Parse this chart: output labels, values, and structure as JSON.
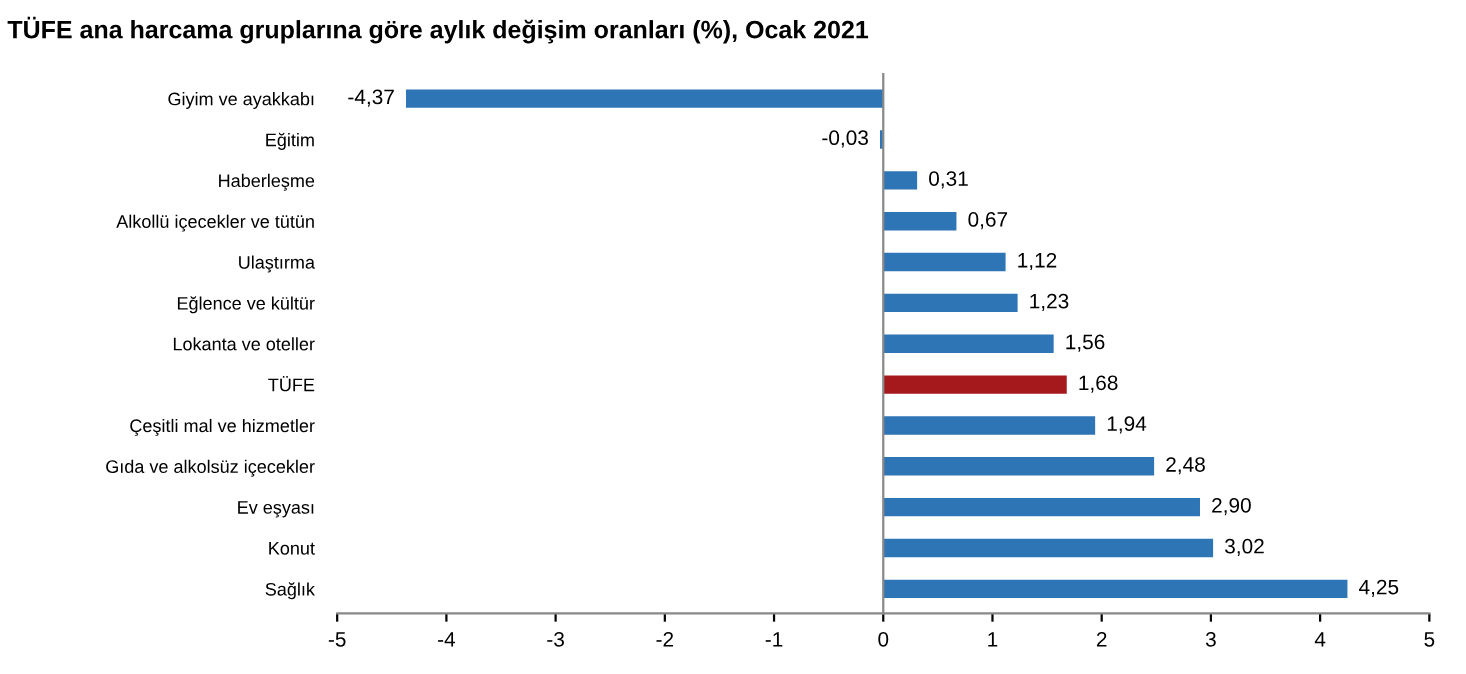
{
  "chart_data": {
    "type": "bar",
    "orientation": "horizontal",
    "title": "TÜFE ana harcama gruplarına göre aylık değişim oranları (%), Ocak 2021",
    "categories": [
      "Giyim ve ayakkabı",
      "Eğitim",
      "Haberleşme",
      "Alkollü içecekler ve tütün",
      "Ulaştırma",
      "Eğlence ve kültür",
      "Lokanta ve oteller",
      "TÜFE",
      "Çeşitli mal ve hizmetler",
      "Gıda ve alkolsüz içecekler",
      "Ev eşyası",
      "Konut",
      "Sağlık"
    ],
    "values": [
      -4.37,
      -0.03,
      0.31,
      0.67,
      1.12,
      1.23,
      1.56,
      1.68,
      1.94,
      2.48,
      2.9,
      3.02,
      4.25
    ],
    "value_labels": [
      "-4,37",
      "-0,03",
      "0,31",
      "0,67",
      "1,12",
      "1,23",
      "1,56",
      "1,68",
      "1,94",
      "2,48",
      "2,90",
      "3,02",
      "4,25"
    ],
    "colors": [
      "#2e75b6",
      "#2e75b6",
      "#2e75b6",
      "#2e75b6",
      "#2e75b6",
      "#2e75b6",
      "#2e75b6",
      "#a5191c",
      "#2e75b6",
      "#2e75b6",
      "#2e75b6",
      "#2e75b6",
      "#2e75b6"
    ],
    "xlim": [
      -5,
      5
    ],
    "xticks": [
      {
        "value": -5,
        "label": "-5"
      },
      {
        "value": -4,
        "label": "-4"
      },
      {
        "value": -3,
        "label": "-3"
      },
      {
        "value": -2,
        "label": "-2"
      },
      {
        "value": -1,
        "label": "-1"
      },
      0,
      1,
      2,
      3,
      4,
      5
    ],
    "legend": false
  }
}
